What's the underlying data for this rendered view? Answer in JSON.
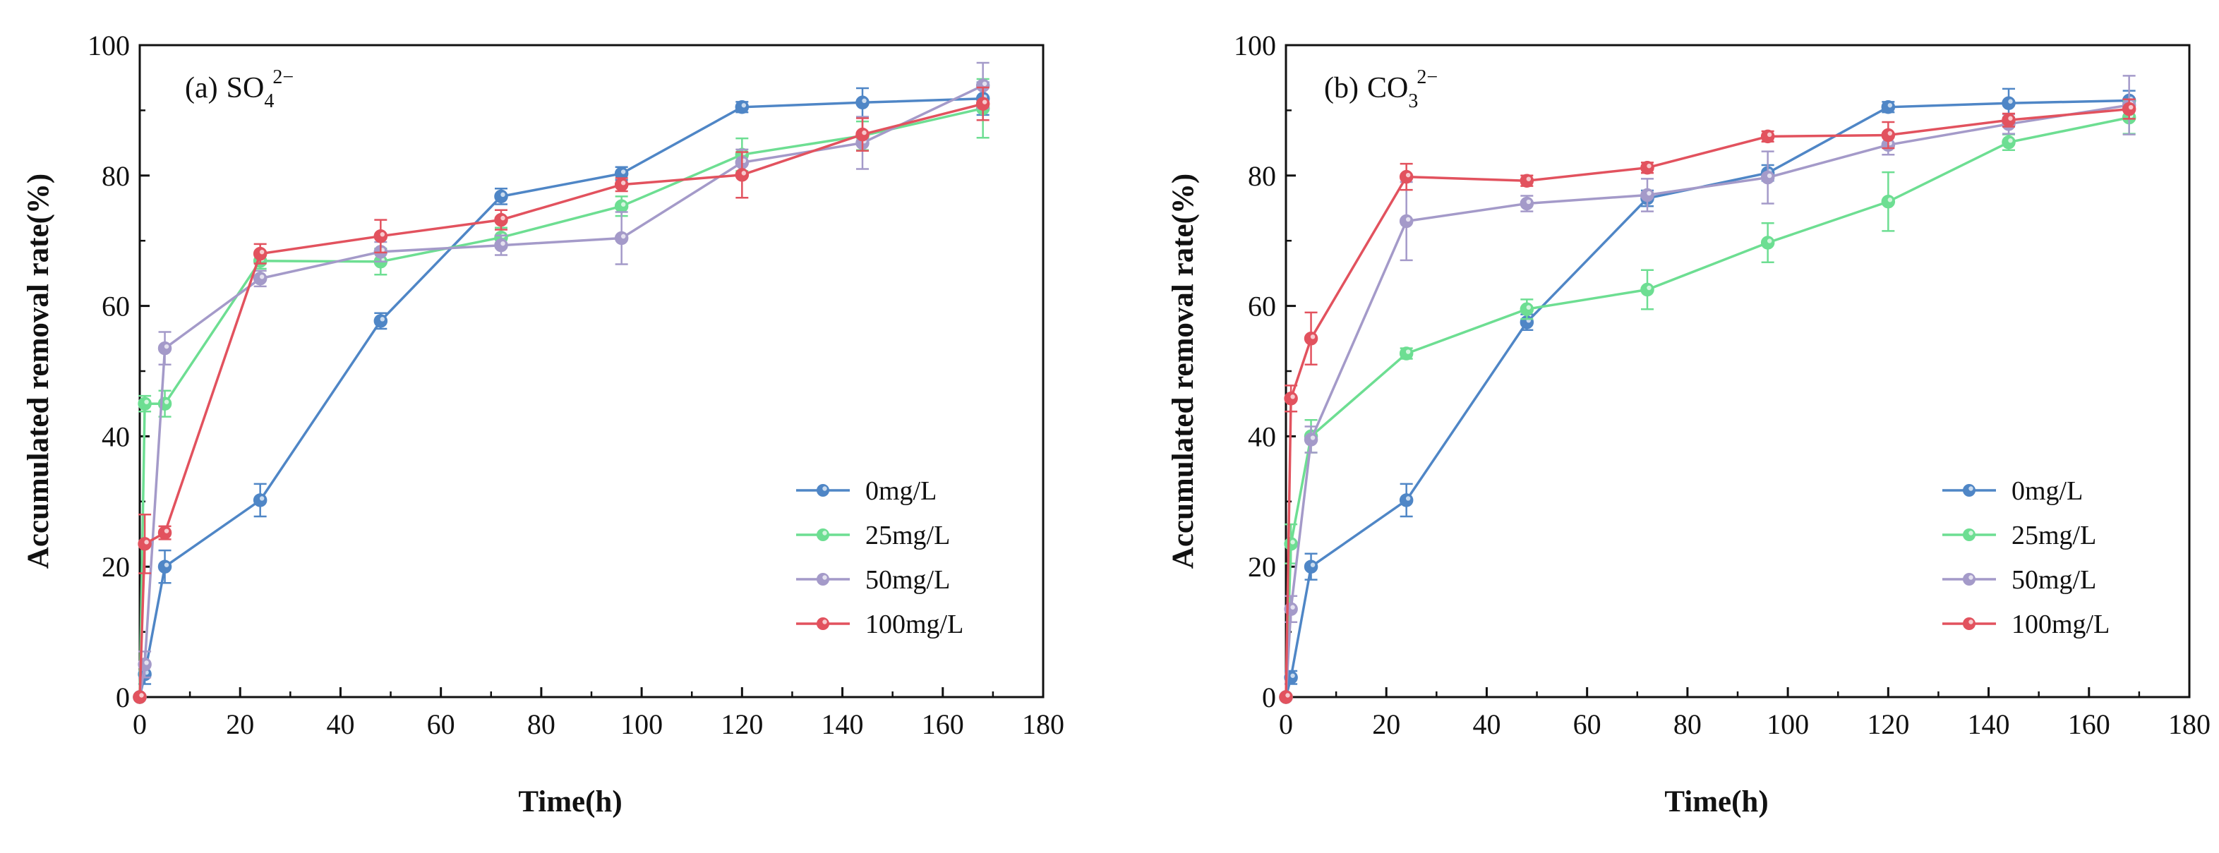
{
  "chart_data": [
    {
      "type": "line",
      "panel": "(a)",
      "title_main": "SO",
      "title_sub": "4",
      "title_sup": "2−",
      "xlabel": "Time(h)",
      "ylabel": "Accumulated removal rate(%)",
      "xlim": [
        0,
        180
      ],
      "ylim": [
        0,
        100
      ],
      "xticks": [
        0,
        20,
        40,
        60,
        80,
        100,
        120,
        140,
        160,
        180
      ],
      "yticks": [
        0,
        20,
        40,
        60,
        80,
        100
      ],
      "legend_position": "bottom-right",
      "series": [
        {
          "name": "0mg/L",
          "color": "#4f86c6",
          "x": [
            0,
            1,
            5,
            24,
            48,
            72,
            96,
            120,
            144,
            168
          ],
          "values": [
            0,
            3.5,
            20,
            30.2,
            57.7,
            76.8,
            80.3,
            90.5,
            91.2,
            91.8
          ],
          "errors": [
            0,
            1.5,
            2.5,
            2.5,
            1.2,
            1.2,
            1.0,
            0.8,
            2.2,
            2.5
          ]
        },
        {
          "name": "25mg/L",
          "color": "#6dde92",
          "x": [
            0,
            1,
            5,
            24,
            48,
            72,
            96,
            120,
            144,
            168
          ],
          "values": [
            0,
            45,
            45,
            66.9,
            66.8,
            70.5,
            75.3,
            83.2,
            86.1,
            90.3
          ],
          "errors": [
            0,
            1.2,
            2.0,
            1.2,
            2.0,
            1.5,
            1.5,
            2.5,
            2.2,
            4.5
          ]
        },
        {
          "name": "50mg/L",
          "color": "#a49ac9",
          "x": [
            0,
            1,
            5,
            24,
            48,
            72,
            96,
            120,
            144,
            168
          ],
          "values": [
            0,
            5,
            53.5,
            64.2,
            68.3,
            69.3,
            70.4,
            82,
            85,
            93.8
          ],
          "errors": [
            0,
            2.0,
            2.5,
            1.2,
            1.5,
            1.5,
            4.0,
            2.0,
            4.0,
            3.5
          ]
        },
        {
          "name": "100mg/L",
          "color": "#e2525e",
          "x": [
            0,
            1,
            5,
            24,
            48,
            72,
            96,
            120,
            144,
            168
          ],
          "values": [
            0,
            23.5,
            25.2,
            68,
            70.7,
            73.2,
            78.6,
            80.1,
            86.3,
            91
          ],
          "errors": [
            0,
            4.5,
            1.0,
            1.5,
            2.5,
            1.5,
            1.0,
            3.5,
            2.5,
            2.5
          ]
        }
      ]
    },
    {
      "type": "line",
      "panel": "(b)",
      "title_main": "CO",
      "title_sub": "3",
      "title_sup": "2−",
      "xlabel": "Time(h)",
      "ylabel": "Accumulated removal rate(%)",
      "xlim": [
        0,
        180
      ],
      "ylim": [
        0,
        100
      ],
      "xticks": [
        0,
        20,
        40,
        60,
        80,
        100,
        120,
        140,
        160,
        180
      ],
      "yticks": [
        0,
        20,
        40,
        60,
        80,
        100
      ],
      "legend_position": "bottom-right",
      "series": [
        {
          "name": "0mg/L",
          "color": "#4f86c6",
          "x": [
            0,
            1,
            5,
            24,
            48,
            72,
            96,
            120,
            144,
            168
          ],
          "values": [
            0,
            3,
            20,
            30.2,
            57.5,
            76.5,
            80.4,
            90.5,
            91.1,
            91.5
          ],
          "errors": [
            0,
            1.0,
            2.0,
            2.5,
            1.2,
            1.2,
            1.2,
            0.8,
            2.2,
            1.5
          ]
        },
        {
          "name": "25mg/L",
          "color": "#6dde92",
          "x": [
            0,
            1,
            5,
            24,
            48,
            72,
            96,
            120,
            144,
            168
          ],
          "values": [
            0,
            23.5,
            40,
            52.7,
            59.5,
            62.5,
            69.7,
            76,
            85.1,
            88.9
          ],
          "errors": [
            0,
            3.0,
            2.5,
            0.8,
            1.5,
            3.0,
            3.0,
            4.5,
            1.2,
            2.5
          ]
        },
        {
          "name": "50mg/L",
          "color": "#a49ac9",
          "x": [
            0,
            1,
            5,
            24,
            48,
            72,
            96,
            120,
            144,
            168
          ],
          "values": [
            0,
            13.5,
            39.5,
            73,
            75.7,
            77,
            79.7,
            84.7,
            87.9,
            90.8
          ],
          "errors": [
            0,
            2.0,
            2.0,
            6.0,
            1.2,
            2.5,
            4.0,
            1.5,
            1.5,
            4.5
          ]
        },
        {
          "name": "100mg/L",
          "color": "#e2525e",
          "x": [
            0,
            1,
            5,
            24,
            48,
            72,
            96,
            120,
            144,
            168
          ],
          "values": [
            0,
            45.8,
            55,
            79.8,
            79.2,
            81.2,
            86,
            86.2,
            88.5,
            90.2
          ],
          "errors": [
            0,
            2.0,
            4.0,
            2.0,
            0.8,
            0.8,
            0.8,
            2.0,
            1.0,
            1.5
          ]
        }
      ]
    }
  ]
}
